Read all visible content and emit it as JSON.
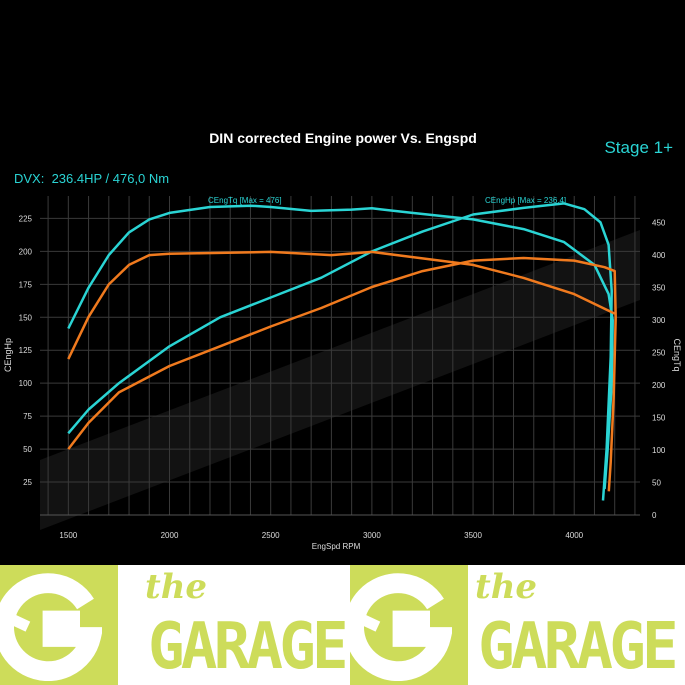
{
  "chart_data": {
    "type": "line",
    "title": "DIN corrected Engine power Vs. Engspd",
    "stage_label": "Stage 1+",
    "summary": "DVX:  236.4HP / 476,0 Nm",
    "xlabel": "EngSpd RPM",
    "ylabel_left": "CEngHp",
    "ylabel_right": "CEngTq",
    "xlim": [
      1360,
      4325
    ],
    "ylim_left": [
      0,
      242
    ],
    "ylim_right": [
      0,
      491
    ],
    "x_ticks": [
      1500,
      2000,
      2500,
      3000,
      3500,
      4000
    ],
    "y_ticks_left": [
      25,
      50,
      75,
      100,
      125,
      150,
      175,
      200,
      225
    ],
    "y_ticks_right": [
      0,
      50,
      100,
      150,
      200,
      250,
      300,
      350,
      400,
      450
    ],
    "grid": true,
    "annotations": [
      "CEngTq [Max = 476]",
      "CEngHp [Max = 236.4]"
    ],
    "series": [
      {
        "axis": "left",
        "color": "#2ad4d4",
        "points": [
          [
            1500,
            62
          ],
          [
            1600,
            80
          ],
          [
            1750,
            100
          ],
          [
            2000,
            128
          ],
          [
            2250,
            150
          ],
          [
            2500,
            165
          ],
          [
            2750,
            180
          ],
          [
            3000,
            200
          ],
          [
            3250,
            215
          ],
          [
            3500,
            228
          ],
          [
            3750,
            233
          ],
          [
            3950,
            236.4
          ],
          [
            4050,
            232
          ],
          [
            4130,
            222
          ],
          [
            4170,
            205
          ],
          [
            4185,
            170
          ],
          [
            4180,
            120
          ],
          [
            4160,
            50
          ],
          [
            4142,
            11
          ]
        ]
      },
      {
        "axis": "right",
        "color": "#2ad4d4",
        "points": [
          [
            1500,
            287
          ],
          [
            1600,
            350
          ],
          [
            1700,
            400
          ],
          [
            1800,
            435
          ],
          [
            1900,
            455
          ],
          [
            2000,
            465
          ],
          [
            2200,
            474
          ],
          [
            2400,
            476
          ],
          [
            2500,
            474
          ],
          [
            2700,
            468
          ],
          [
            2900,
            470
          ],
          [
            3000,
            472
          ],
          [
            3200,
            465
          ],
          [
            3500,
            455
          ],
          [
            3750,
            440
          ],
          [
            3950,
            420
          ],
          [
            4100,
            385
          ],
          [
            4170,
            340
          ],
          [
            4190,
            300
          ],
          [
            4185,
            200
          ],
          [
            4165,
            100
          ],
          [
            4150,
            40
          ]
        ]
      },
      {
        "axis": "left",
        "color": "#f07a1e",
        "points": [
          [
            1500,
            50
          ],
          [
            1600,
            70
          ],
          [
            1750,
            93
          ],
          [
            2000,
            113
          ],
          [
            2250,
            128
          ],
          [
            2500,
            143
          ],
          [
            2750,
            157
          ],
          [
            3000,
            173
          ],
          [
            3250,
            185
          ],
          [
            3500,
            193
          ],
          [
            3750,
            195
          ],
          [
            4000,
            193
          ],
          [
            4150,
            188
          ],
          [
            4200,
            185
          ],
          [
            4205,
            150
          ],
          [
            4195,
            90
          ],
          [
            4180,
            40
          ],
          [
            4171,
            18
          ]
        ]
      },
      {
        "axis": "right",
        "color": "#f07a1e",
        "points": [
          [
            1500,
            240
          ],
          [
            1600,
            305
          ],
          [
            1700,
            355
          ],
          [
            1800,
            385
          ],
          [
            1900,
            400
          ],
          [
            2000,
            402
          ],
          [
            2500,
            405
          ],
          [
            2800,
            400
          ],
          [
            3000,
            405
          ],
          [
            3250,
            395
          ],
          [
            3500,
            385
          ],
          [
            3750,
            365
          ],
          [
            4000,
            340
          ],
          [
            4200,
            310
          ]
        ]
      }
    ]
  },
  "banner": {
    "the": "the",
    "garage": "GARAGE",
    "logo_color": "#cddc5a"
  }
}
